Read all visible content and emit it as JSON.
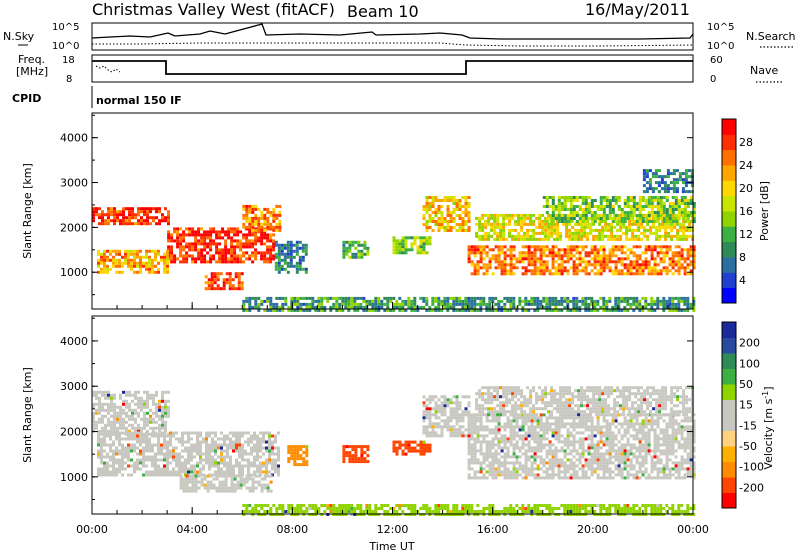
{
  "header": {
    "title": "Christmas Valley West (fitACF)",
    "beam": "Beam 10",
    "date": "16/May/2011"
  },
  "top_panels": {
    "nsky_label": "N.Sky",
    "nsky_ticks": [
      "10^5",
      "10^0"
    ],
    "nsearch_label": "N.Search",
    "nsearch_ticks": [
      "10^5",
      "10^0"
    ],
    "freq_label_1": "Freq.",
    "freq_label_2": "[MHz]",
    "freq_ticks": [
      "18",
      "8"
    ],
    "nave_label": "Nave",
    "nave_ticks": [
      "60",
      "0"
    ],
    "cpid_label": "CPID",
    "cpid_value": "normal 150 IF"
  },
  "chart_data": [
    {
      "type": "heatmap",
      "name": "power-panel",
      "ylabel": "Slant Range [km]",
      "yticks": [
        "4000",
        "3000",
        "2000",
        "1000"
      ],
      "ylim": [
        180,
        4550
      ],
      "xlim": [
        0,
        24
      ],
      "colorbar": {
        "label": "Power [dB]",
        "ticks": [
          "28",
          "24",
          "20",
          "16",
          "12",
          "8",
          "4"
        ],
        "colors": [
          "#0000ff",
          "#2040d0",
          "#2a6fa0",
          "#2e8b57",
          "#3cb043",
          "#8fd400",
          "#c9e400",
          "#ffd700",
          "#ffa500",
          "#ff7000",
          "#ff3000",
          "#ff0000"
        ]
      },
      "regions": [
        {
          "t0": 0.0,
          "t1": 3.0,
          "r0": 2100,
          "r1": 2450,
          "level": 28
        },
        {
          "t0": 3.0,
          "t1": 7.2,
          "r0": 1250,
          "r1": 2000,
          "level": 28
        },
        {
          "t0": 0.2,
          "t1": 3.0,
          "r0": 1000,
          "r1": 1500,
          "level": 22
        },
        {
          "t0": 4.5,
          "t1": 6.0,
          "r0": 650,
          "r1": 1000,
          "level": 26
        },
        {
          "t0": 6.0,
          "t1": 7.5,
          "r0": 1900,
          "r1": 2500,
          "level": 24
        },
        {
          "t0": 7.3,
          "t1": 8.6,
          "r0": 1000,
          "r1": 1700,
          "level": 8
        },
        {
          "t0": 10.0,
          "t1": 11.0,
          "r0": 1350,
          "r1": 1700,
          "level": 12
        },
        {
          "t0": 12.0,
          "t1": 13.5,
          "r0": 1400,
          "r1": 1800,
          "level": 14
        },
        {
          "t0": 13.2,
          "t1": 15.0,
          "r0": 1900,
          "r1": 2700,
          "level": 20
        },
        {
          "t0": 15.0,
          "t1": 24.0,
          "r0": 950,
          "r1": 1600,
          "level": 24
        },
        {
          "t0": 15.3,
          "t1": 24.0,
          "r0": 1700,
          "r1": 2300,
          "level": 18
        },
        {
          "t0": 18.0,
          "t1": 24.0,
          "r0": 2100,
          "r1": 2700,
          "level": 14
        },
        {
          "t0": 22.0,
          "t1": 24.0,
          "r0": 2800,
          "r1": 3300,
          "level": 8
        },
        {
          "t0": 6.0,
          "t1": 24.0,
          "r0": 180,
          "r1": 450,
          "level": 10
        }
      ]
    },
    {
      "type": "heatmap",
      "name": "velocity-panel",
      "ylabel": "Slant Range [km]",
      "yticks": [
        "4000",
        "3000",
        "2000",
        "1000"
      ],
      "ylim": [
        180,
        4550
      ],
      "xlim": [
        0,
        24
      ],
      "xlabel": "Time UT",
      "xticks": [
        "00:00",
        "04:00",
        "08:00",
        "12:00",
        "16:00",
        "20:00",
        "00:00"
      ],
      "colorbar": {
        "label": "Velocity [m s",
        "label_sup": "-1",
        "label_end": "]",
        "ticks": [
          "200",
          "100",
          "50",
          "15",
          "-15",
          "-50",
          "-100",
          "-200"
        ],
        "colors": [
          "#ff0000",
          "#ff4500",
          "#ff8c00",
          "#ffb000",
          "#ffd27f",
          "#c8c8c0",
          "#c8c8c0",
          "#8fd400",
          "#3cb043",
          "#2e8b57",
          "#2a4aa0",
          "#1a2a9a"
        ]
      },
      "regions": [
        {
          "t0": 0.0,
          "t1": 3.0,
          "r0": 1950,
          "r1": 2900,
          "level": 0
        },
        {
          "t0": 0.2,
          "t1": 7.5,
          "r0": 1050,
          "r1": 2000,
          "level": 0
        },
        {
          "t0": 3.5,
          "t1": 7.2,
          "r0": 700,
          "r1": 1050,
          "level": 0
        },
        {
          "t0": 7.8,
          "t1": 8.6,
          "r0": 1300,
          "r1": 1700,
          "level": -60
        },
        {
          "t0": 10.0,
          "t1": 11.0,
          "r0": 1350,
          "r1": 1700,
          "level": -80
        },
        {
          "t0": 12.0,
          "t1": 13.5,
          "r0": 1500,
          "r1": 1800,
          "level": -90
        },
        {
          "t0": 13.2,
          "t1": 15.0,
          "r0": 1900,
          "r1": 2800,
          "level": 0
        },
        {
          "t0": 15.0,
          "t1": 24.0,
          "r0": 1000,
          "r1": 2400,
          "level": 0
        },
        {
          "t0": 15.3,
          "t1": 24.0,
          "r0": 2400,
          "r1": 3000,
          "level": 0
        },
        {
          "t0": 6.0,
          "t1": 24.0,
          "r0": 180,
          "r1": 400,
          "level": 30
        }
      ]
    }
  ]
}
